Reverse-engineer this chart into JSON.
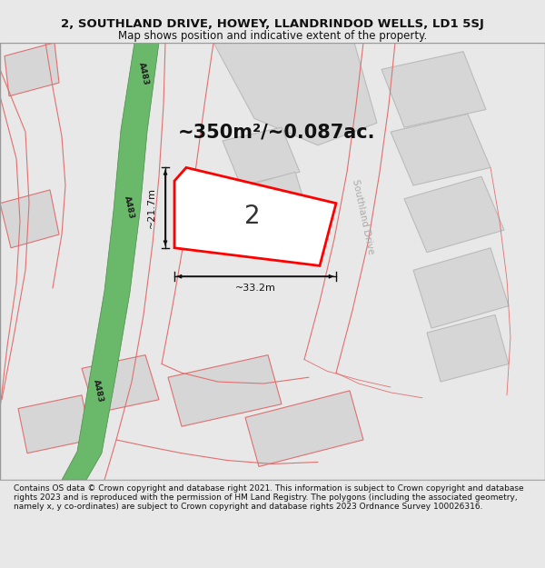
{
  "title": "2, SOUTHLAND DRIVE, HOWEY, LLANDRINDOD WELLS, LD1 5SJ",
  "subtitle": "Map shows position and indicative extent of the property.",
  "footer": "Contains OS data © Crown copyright and database right 2021. This information is subject to Crown copyright and database rights 2023 and is reproduced with the permission of HM Land Registry. The polygons (including the associated geometry, namely x, y co-ordinates) are subject to Crown copyright and database rights 2023 Ordnance Survey 100026316.",
  "area_label": "~350m²/~0.087ac.",
  "number_label": "2",
  "dim_h": "~21.7m",
  "dim_w": "~33.2m",
  "road_label_a": "A483",
  "road_label_b": "A483",
  "road_label_c": "A483",
  "road_label_side": "Southland Drive",
  "title_fontsize": 9.5,
  "subtitle_fontsize": 8.5,
  "footer_fontsize": 6.5,
  "map_bg": "#ffffff",
  "fig_bg": "#e8e8e8",
  "building_fill": "#d6d6d6",
  "building_edge_pink": "#e07070",
  "building_edge_gray": "#bbbbbb",
  "road_green_fill": "#6ab86a",
  "road_green_edge": "#4a8a4a",
  "property_edge": "#ff0000",
  "property_fill": "#ffffff",
  "dim_color": "#111111",
  "text_dark": "#333333",
  "text_gray": "#aaaaaa"
}
